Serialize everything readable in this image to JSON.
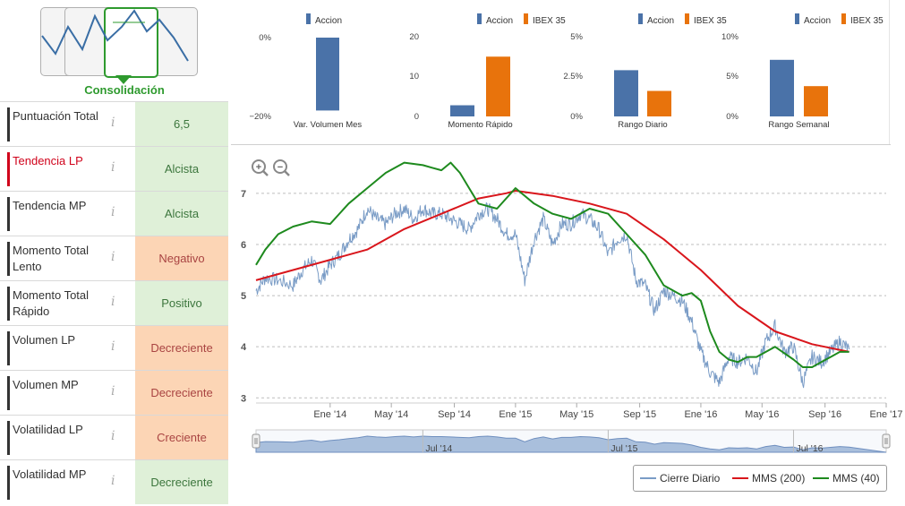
{
  "pattern": {
    "label": "Consolidación",
    "icons": [
      "trend-down-pattern-icon",
      "trend-up-pattern-icon",
      "consolidation-pattern-icon",
      "trend-down-alt-pattern-icon"
    ]
  },
  "metrics": [
    {
      "name": "Puntuación Total",
      "value": "6,5",
      "state": "positive",
      "highlight": false
    },
    {
      "name": "Tendencia LP",
      "value": "Alcista",
      "state": "positive",
      "highlight": true
    },
    {
      "name": "Tendencia MP",
      "value": "Alcista",
      "state": "positive",
      "highlight": false
    },
    {
      "name": "Momento Total Lento",
      "value": "Negativo",
      "state": "negative",
      "highlight": false
    },
    {
      "name": "Momento Total Rápido",
      "value": "Positivo",
      "state": "positive",
      "highlight": false
    },
    {
      "name": "Volumen LP",
      "value": "Decreciente",
      "state": "negative",
      "highlight": false
    },
    {
      "name": "Volumen MP",
      "value": "Decreciente",
      "state": "negative",
      "highlight": false
    },
    {
      "name": "Volatilidad LP",
      "value": "Creciente",
      "state": "negative",
      "highlight": false
    },
    {
      "name": "Volatilidad MP",
      "value": "Decreciente",
      "state": "positive",
      "highlight": false
    }
  ],
  "info_glyph": "i",
  "colors": {
    "positive_bg": "#dff0d8",
    "positive_fg": "#3c763d",
    "negative_bg": "#fcd5b5",
    "negative_fg": "#a94442",
    "highlight_fg": "#d0021b",
    "accion": "#4a72a8",
    "ibex": "#e8730c",
    "close_line": "#7a9cc6",
    "mms200": "#d9161c",
    "mms40": "#1e8a1e",
    "navigator_fill": "#a9bfdc"
  },
  "chart_data": [
    {
      "type": "bar",
      "title": "Var. Volumen Mes",
      "series": [
        {
          "name": "Accion",
          "values": [
            -18.5
          ]
        }
      ],
      "yticks": [
        "0%",
        "−20%"
      ],
      "ylim": [
        -20,
        0
      ]
    },
    {
      "type": "bar",
      "title": "Momento Rápido",
      "series": [
        {
          "name": "Accion",
          "values": [
            2.8
          ]
        },
        {
          "name": "IBEX 35",
          "values": [
            15
          ]
        }
      ],
      "yticks": [
        "20",
        "10",
        "0"
      ],
      "ylim": [
        0,
        20
      ]
    },
    {
      "type": "bar",
      "title": "Rango Diario",
      "series": [
        {
          "name": "Accion",
          "values": [
            2.9
          ]
        },
        {
          "name": "IBEX 35",
          "values": [
            1.6
          ]
        }
      ],
      "yticks": [
        "5%",
        "2.5%",
        "0%"
      ],
      "ylim": [
        0,
        5
      ]
    },
    {
      "type": "bar",
      "title": "Rango Semanal",
      "series": [
        {
          "name": "Accion",
          "values": [
            7.1
          ]
        },
        {
          "name": "IBEX 35",
          "values": [
            3.8
          ]
        }
      ],
      "yticks": [
        "10%",
        "5%",
        "0%"
      ],
      "ylim": [
        0,
        10
      ]
    },
    {
      "type": "line",
      "title": "",
      "xlim": [
        2013.6,
        2017.0
      ],
      "ylim": [
        2.9,
        7.4
      ],
      "yticks": [
        "7",
        "6",
        "5",
        "4",
        "3"
      ],
      "ytick_values": [
        7,
        6,
        5,
        4,
        3
      ],
      "xticks": [
        "Ene '14",
        "May '14",
        "Sep '14",
        "Ene '15",
        "May '15",
        "Sep '15",
        "Ene '16",
        "May '16",
        "Sep '16",
        "Ene '17"
      ],
      "xtick_values": [
        2014.0,
        2014.33,
        2014.67,
        2015.0,
        2015.33,
        2015.67,
        2016.0,
        2016.33,
        2016.67,
        2017.0
      ],
      "navigator_labels": [
        "Jul '14",
        "Jul '15",
        "Jul '16"
      ],
      "navigator_label_values": [
        2014.5,
        2015.5,
        2016.5
      ],
      "zoom_in_label": "+",
      "zoom_out_label": "−",
      "series": [
        {
          "name": "Cierre Diario",
          "x": [
            2013.6,
            2013.65,
            2013.72,
            2013.8,
            2013.85,
            2013.9,
            2013.95,
            2014.0,
            2014.05,
            2014.1,
            2014.15,
            2014.2,
            2014.25,
            2014.3,
            2014.35,
            2014.4,
            2014.45,
            2014.5,
            2014.55,
            2014.6,
            2014.65,
            2014.7,
            2014.75,
            2014.8,
            2014.85,
            2014.9,
            2014.95,
            2015.0,
            2015.05,
            2015.1,
            2015.15,
            2015.2,
            2015.25,
            2015.3,
            2015.35,
            2015.4,
            2015.45,
            2015.5,
            2015.55,
            2015.6,
            2015.65,
            2015.7,
            2015.75,
            2015.8,
            2015.85,
            2015.9,
            2015.95,
            2016.0,
            2016.05,
            2016.1,
            2016.15,
            2016.2,
            2016.25,
            2016.3,
            2016.35,
            2016.4,
            2016.45,
            2016.5,
            2016.55,
            2016.6,
            2016.65,
            2016.7,
            2016.75,
            2016.8
          ],
          "values": [
            5.1,
            5.35,
            5.3,
            5.2,
            5.5,
            5.7,
            5.3,
            5.6,
            5.8,
            6.1,
            6.3,
            6.7,
            6.5,
            6.4,
            6.6,
            6.7,
            6.5,
            6.7,
            6.6,
            6.6,
            6.5,
            6.4,
            6.3,
            6.6,
            6.7,
            6.5,
            6.2,
            6.2,
            5.3,
            6.1,
            6.5,
            6.0,
            6.4,
            6.4,
            6.6,
            6.5,
            6.3,
            5.8,
            6.1,
            6.2,
            5.3,
            5.2,
            4.7,
            5.1,
            5.0,
            4.9,
            4.5,
            3.9,
            3.5,
            3.3,
            3.8,
            3.7,
            3.8,
            3.5,
            4.1,
            4.4,
            3.9,
            4.0,
            3.3,
            3.8,
            3.7,
            3.9,
            4.1,
            3.95
          ]
        },
        {
          "name": "MMS (200)",
          "x": [
            2013.6,
            2013.8,
            2014.0,
            2014.2,
            2014.4,
            2014.6,
            2014.8,
            2014.95,
            2015.0,
            2015.2,
            2015.4,
            2015.6,
            2015.8,
            2016.0,
            2016.2,
            2016.4,
            2016.6,
            2016.8
          ],
          "values": [
            5.3,
            5.5,
            5.7,
            5.9,
            6.3,
            6.6,
            6.9,
            7.0,
            7.05,
            6.95,
            6.8,
            6.6,
            6.1,
            5.5,
            4.8,
            4.3,
            4.05,
            3.9
          ]
        },
        {
          "name": "MMS (40)",
          "x": [
            2013.6,
            2013.65,
            2013.72,
            2013.8,
            2013.9,
            2014.0,
            2014.1,
            2014.2,
            2014.3,
            2014.4,
            2014.5,
            2014.55,
            2014.6,
            2014.65,
            2014.7,
            2014.75,
            2014.8,
            2014.9,
            2015.0,
            2015.1,
            2015.2,
            2015.3,
            2015.4,
            2015.5,
            2015.6,
            2015.7,
            2015.8,
            2015.85,
            2015.9,
            2015.95,
            2016.0,
            2016.05,
            2016.1,
            2016.15,
            2016.2,
            2016.25,
            2016.3,
            2016.4,
            2016.5,
            2016.55,
            2016.6,
            2016.65,
            2016.7,
            2016.75,
            2016.8
          ],
          "values": [
            5.6,
            5.9,
            6.2,
            6.35,
            6.45,
            6.4,
            6.8,
            7.1,
            7.4,
            7.6,
            7.55,
            7.5,
            7.45,
            7.6,
            7.4,
            7.1,
            6.8,
            6.7,
            7.1,
            6.8,
            6.6,
            6.5,
            6.7,
            6.6,
            6.2,
            5.8,
            5.2,
            5.1,
            5.0,
            5.05,
            4.9,
            4.3,
            3.9,
            3.75,
            3.7,
            3.8,
            3.8,
            4.0,
            3.75,
            3.6,
            3.6,
            3.7,
            3.8,
            3.9,
            3.9
          ]
        }
      ]
    }
  ]
}
